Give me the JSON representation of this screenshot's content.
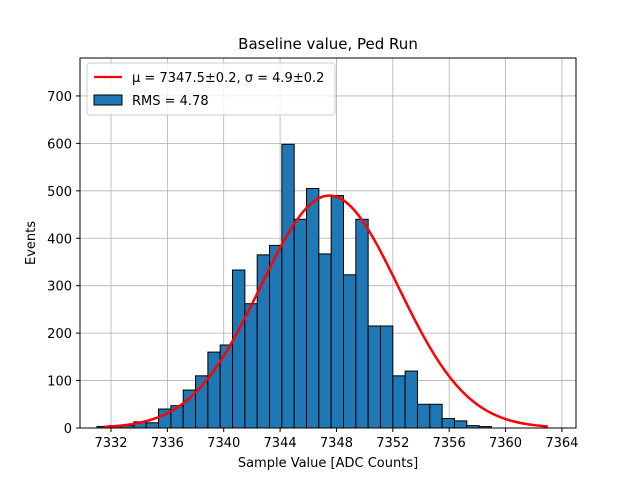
{
  "chart_data": {
    "type": "bar",
    "title": "Baseline value, Ped Run",
    "xlabel": "Sample Value [ADC Counts]",
    "ylabel": "Events",
    "xlim": [
      7329.8,
      7365.0
    ],
    "ylim": [
      0,
      780
    ],
    "xticks": [
      7332,
      7336,
      7340,
      7344,
      7348,
      7352,
      7356,
      7360,
      7364
    ],
    "yticks": [
      0,
      100,
      200,
      300,
      400,
      500,
      600,
      700
    ],
    "grid": true,
    "legend_position": "top-left",
    "bin_width": 0.875,
    "bins": [
      {
        "x": 7331.0,
        "value": 3
      },
      {
        "x": 7331.875,
        "value": 5
      },
      {
        "x": 7332.75,
        "value": 5
      },
      {
        "x": 7333.625,
        "value": 13
      },
      {
        "x": 7334.5,
        "value": 11
      },
      {
        "x": 7335.375,
        "value": 40
      },
      {
        "x": 7336.25,
        "value": 47
      },
      {
        "x": 7337.125,
        "value": 80
      },
      {
        "x": 7338.0,
        "value": 110
      },
      {
        "x": 7338.875,
        "value": 160
      },
      {
        "x": 7339.75,
        "value": 175
      },
      {
        "x": 7340.625,
        "value": 333
      },
      {
        "x": 7341.5,
        "value": 262
      },
      {
        "x": 7342.375,
        "value": 365
      },
      {
        "x": 7343.25,
        "value": 385
      },
      {
        "x": 7344.125,
        "value": 598
      },
      {
        "x": 7345.0,
        "value": 440
      },
      {
        "x": 7345.875,
        "value": 505
      },
      {
        "x": 7346.75,
        "value": 367
      },
      {
        "x": 7347.625,
        "value": 490
      },
      {
        "x": 7348.5,
        "value": 323
      },
      {
        "x": 7349.375,
        "value": 440
      },
      {
        "x": 7350.25,
        "value": 215
      },
      {
        "x": 7351.125,
        "value": 215
      },
      {
        "x": 7352.0,
        "value": 110
      },
      {
        "x": 7352.875,
        "value": 120
      },
      {
        "x": 7353.75,
        "value": 50
      },
      {
        "x": 7354.625,
        "value": 50
      },
      {
        "x": 7355.5,
        "value": 20
      },
      {
        "x": 7356.375,
        "value": 15
      },
      {
        "x": 7357.25,
        "value": 5
      },
      {
        "x": 7358.125,
        "value": 3
      }
    ],
    "bar_color": "#1f77b4",
    "series": [
      {
        "name": "RMS = 4.78",
        "kind": "histogram",
        "color": "#1f77b4"
      },
      {
        "name": "μ = 7347.5±0.2, σ = 4.9±0.2",
        "kind": "gaussian-fit",
        "color": "#ff0000",
        "mu": 7347.5,
        "sigma": 4.9,
        "amplitude": 490,
        "x_range": [
          7331.5,
          7363.0
        ]
      }
    ]
  }
}
